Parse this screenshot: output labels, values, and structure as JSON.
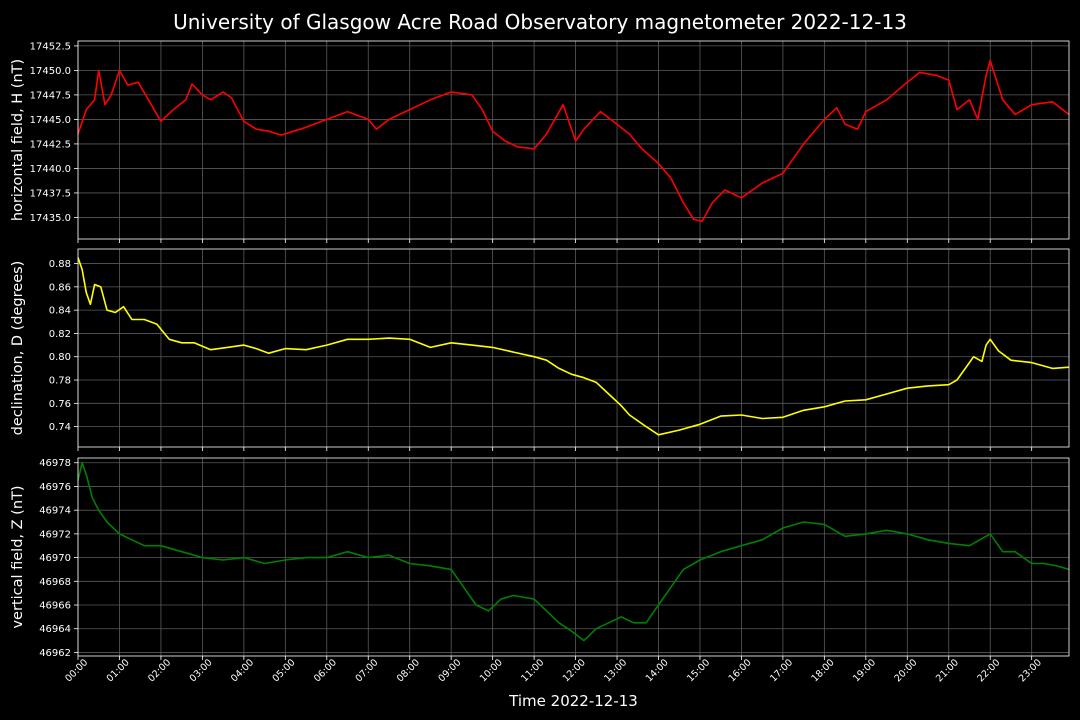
{
  "figure": {
    "title": "University of Glasgow Acre Road Observatory magnetometer 2022-12-13",
    "xlabel": "Time 2022-12-13",
    "background": "#000000",
    "grid_color": "#5a5a5a",
    "text_color": "#ffffff"
  },
  "chart_data": [
    {
      "type": "line",
      "panel": "top",
      "ylabel": "horizontal field, H (nT)",
      "ylim": [
        17432.8,
        17453.0
      ],
      "yticks": [
        17435.0,
        17437.5,
        17440.0,
        17442.5,
        17445.0,
        17447.5,
        17450.0,
        17452.5
      ],
      "ytick_labels": [
        "17435.0",
        "17437.5",
        "17440.0",
        "17442.5",
        "17445.0",
        "17447.5",
        "17450.0",
        "17452.5"
      ],
      "xlim": [
        0,
        23.9
      ],
      "grid": true,
      "series": [
        {
          "color": "#ff0000",
          "x_hours": [
            0,
            0.2,
            0.4,
            0.5,
            0.65,
            0.8,
            1.0,
            1.2,
            1.45,
            1.7,
            2.0,
            2.3,
            2.6,
            2.75,
            3.0,
            3.2,
            3.5,
            3.7,
            4.0,
            4.3,
            4.6,
            4.9,
            5.2,
            5.5,
            6.0,
            6.5,
            7.0,
            7.2,
            7.5,
            8.0,
            8.5,
            9.0,
            9.5,
            9.75,
            10.0,
            10.3,
            10.6,
            11.0,
            11.3,
            11.7,
            12.0,
            12.2,
            12.6,
            13.0,
            13.3,
            13.6,
            14.0,
            14.3,
            14.6,
            14.85,
            15.05,
            15.3,
            15.6,
            16.0,
            16.5,
            17.0,
            17.5,
            18.0,
            18.3,
            18.5,
            18.8,
            19.0,
            19.5,
            20.0,
            20.3,
            20.7,
            21.0,
            21.2,
            21.5,
            21.7,
            21.9,
            22.0,
            22.3,
            22.6,
            23.0,
            23.5,
            23.9
          ],
          "values": [
            17443.5,
            17446.0,
            17447.0,
            17450.0,
            17446.5,
            17447.5,
            17450.0,
            17448.5,
            17448.8,
            17447.0,
            17444.8,
            17446.0,
            17447.0,
            17448.6,
            17447.5,
            17447.0,
            17447.8,
            17447.2,
            17444.8,
            17444.0,
            17443.8,
            17443.4,
            17443.8,
            17444.2,
            17445.0,
            17445.8,
            17445.0,
            17444.0,
            17445.0,
            17446.0,
            17447.0,
            17447.8,
            17447.5,
            17446.0,
            17443.8,
            17442.8,
            17442.2,
            17442.0,
            17443.5,
            17446.5,
            17442.8,
            17444.0,
            17445.8,
            17444.5,
            17443.5,
            17442.0,
            17440.5,
            17439.0,
            17436.5,
            17434.8,
            17434.6,
            17436.5,
            17437.8,
            17437.0,
            17438.5,
            17439.5,
            17442.5,
            17445.0,
            17446.2,
            17444.5,
            17444.0,
            17445.8,
            17447.0,
            17448.8,
            17449.8,
            17449.5,
            17449.0,
            17446.0,
            17447.0,
            17445.0,
            17449.5,
            17451.0,
            17447.0,
            17445.5,
            17446.5,
            17446.8,
            17445.5
          ]
        }
      ]
    },
    {
      "type": "line",
      "panel": "middle",
      "ylabel": "declination, D (degrees)",
      "ylim": [
        0.7225,
        0.8925
      ],
      "yticks": [
        0.74,
        0.76,
        0.78,
        0.8,
        0.82,
        0.84,
        0.86,
        0.88
      ],
      "ytick_labels": [
        "0.74",
        "0.76",
        "0.78",
        "0.80",
        "0.82",
        "0.84",
        "0.86",
        "0.88"
      ],
      "xlim": [
        0,
        23.9
      ],
      "grid": true,
      "series": [
        {
          "color": "#ffff00",
          "x_hours": [
            0,
            0.1,
            0.2,
            0.3,
            0.4,
            0.55,
            0.7,
            0.9,
            1.1,
            1.3,
            1.6,
            1.9,
            2.2,
            2.5,
            2.8,
            3.2,
            3.6,
            4.0,
            4.3,
            4.6,
            5.0,
            5.5,
            6.0,
            6.5,
            7.0,
            7.5,
            8.0,
            8.5,
            9.0,
            9.5,
            10.0,
            10.5,
            11.0,
            11.3,
            11.6,
            11.9,
            12.2,
            12.5,
            12.8,
            13.1,
            13.3,
            13.5,
            13.7,
            14.0,
            14.5,
            15.0,
            15.5,
            16.0,
            16.5,
            17.0,
            17.5,
            18.0,
            18.5,
            19.0,
            19.5,
            20.0,
            20.5,
            21.0,
            21.2,
            21.4,
            21.6,
            21.8,
            21.9,
            22.0,
            22.2,
            22.5,
            23.0,
            23.5,
            23.9
          ],
          "values": [
            0.885,
            0.875,
            0.855,
            0.845,
            0.862,
            0.86,
            0.84,
            0.838,
            0.843,
            0.832,
            0.832,
            0.828,
            0.815,
            0.812,
            0.812,
            0.806,
            0.808,
            0.81,
            0.807,
            0.803,
            0.807,
            0.806,
            0.81,
            0.815,
            0.815,
            0.816,
            0.815,
            0.808,
            0.812,
            0.81,
            0.808,
            0.804,
            0.8,
            0.797,
            0.79,
            0.785,
            0.782,
            0.778,
            0.768,
            0.758,
            0.75,
            0.745,
            0.74,
            0.733,
            0.737,
            0.742,
            0.749,
            0.75,
            0.747,
            0.748,
            0.754,
            0.757,
            0.762,
            0.763,
            0.768,
            0.773,
            0.775,
            0.776,
            0.78,
            0.79,
            0.8,
            0.796,
            0.81,
            0.815,
            0.805,
            0.797,
            0.795,
            0.79,
            0.791
          ]
        }
      ]
    },
    {
      "type": "line",
      "panel": "bottom",
      "ylabel": "vertical field, Z (nT)",
      "ylim": [
        46961.7,
        46978.4
      ],
      "yticks": [
        46962,
        46964,
        46966,
        46968,
        46970,
        46972,
        46974,
        46976,
        46978
      ],
      "ytick_labels": [
        "46962",
        "46964",
        "46966",
        "46968",
        "46970",
        "46972",
        "46974",
        "46976",
        "46978"
      ],
      "xlim": [
        0,
        23.9
      ],
      "grid": true,
      "series": [
        {
          "color": "#008000",
          "x_hours": [
            0,
            0.1,
            0.2,
            0.35,
            0.5,
            0.7,
            1.0,
            1.3,
            1.6,
            2.0,
            2.5,
            3.0,
            3.5,
            4.0,
            4.5,
            5.0,
            5.5,
            6.0,
            6.5,
            7.0,
            7.5,
            8.0,
            8.5,
            9.0,
            9.3,
            9.6,
            9.9,
            10.2,
            10.5,
            11.0,
            11.3,
            11.6,
            11.9,
            12.2,
            12.5,
            12.8,
            13.1,
            13.4,
            13.7,
            14.0,
            14.3,
            14.6,
            15.0,
            15.5,
            16.0,
            16.5,
            17.0,
            17.5,
            18.0,
            18.5,
            19.0,
            19.5,
            20.0,
            20.5,
            21.0,
            21.5,
            22.0,
            22.3,
            22.6,
            23.0,
            23.3,
            23.6,
            23.9
          ],
          "values": [
            46976.5,
            46978.0,
            46977.0,
            46975.0,
            46974.0,
            46973.0,
            46972.0,
            46971.5,
            46971.0,
            46971.0,
            46970.5,
            46970.0,
            46969.8,
            46970.0,
            46969.5,
            46969.8,
            46970.0,
            46970.0,
            46970.5,
            46970.0,
            46970.2,
            46969.5,
            46969.3,
            46969.0,
            46967.5,
            46966.0,
            46965.5,
            46966.5,
            46966.8,
            46966.5,
            46965.5,
            46964.5,
            46963.8,
            46963.0,
            46964.0,
            46964.5,
            46965.0,
            46964.5,
            46964.5,
            46966.0,
            46967.5,
            46969.0,
            46969.8,
            46970.5,
            46971.0,
            46971.5,
            46972.5,
            46973.0,
            46972.8,
            46971.8,
            46972.0,
            46972.3,
            46972.0,
            46971.5,
            46971.2,
            46971.0,
            46972.0,
            46970.5,
            46970.5,
            46969.5,
            46969.5,
            46969.3,
            46969.0
          ]
        }
      ]
    }
  ],
  "xticks": [
    "00:00",
    "01:00",
    "02:00",
    "03:00",
    "04:00",
    "05:00",
    "06:00",
    "07:00",
    "08:00",
    "09:00",
    "10:00",
    "11:00",
    "12:00",
    "13:00",
    "14:00",
    "15:00",
    "16:00",
    "17:00",
    "18:00",
    "19:00",
    "20:00",
    "21:00",
    "22:00",
    "23:00"
  ]
}
